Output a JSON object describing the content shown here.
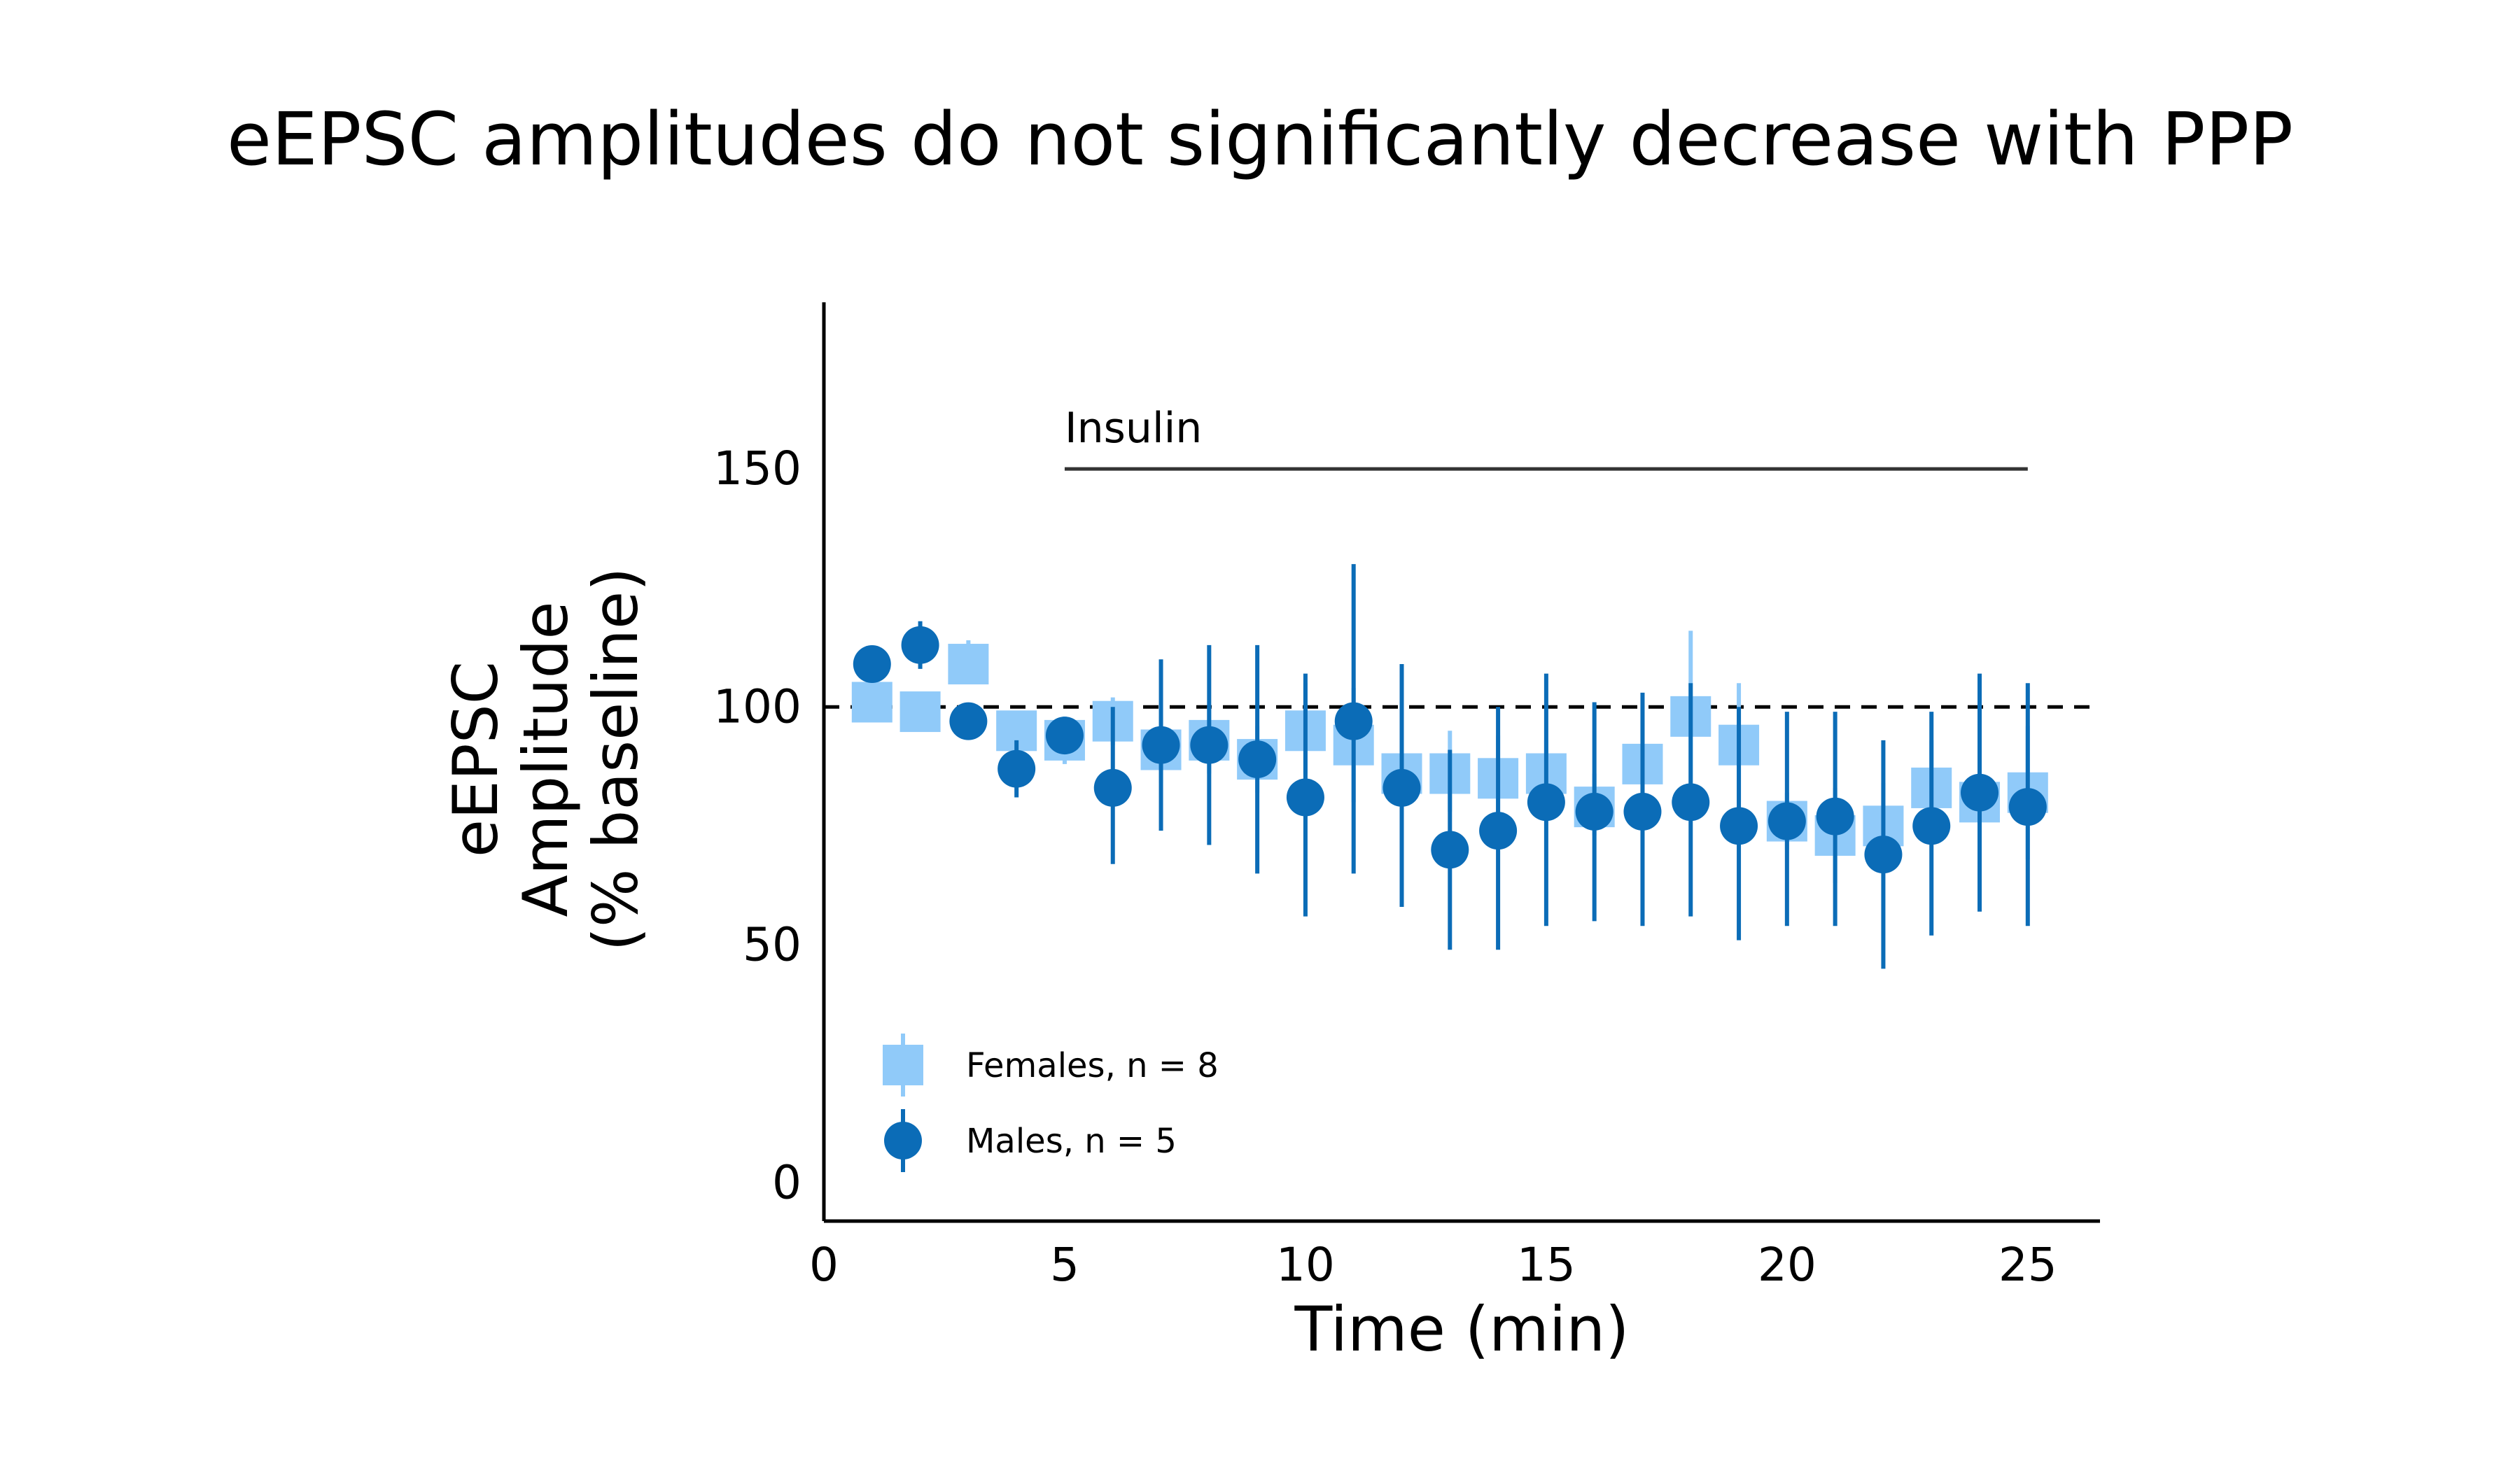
{
  "chart_data": {
    "type": "scatter",
    "title": "eEPSC amplitudes do not significantly decrease with PPP",
    "xlabel": "Time (min)",
    "ylabel": [
      "eEPSC",
      "Amplitude",
      "(% baseline)"
    ],
    "xlim": [
      0,
      26.5
    ],
    "ylim": [
      -8,
      185
    ],
    "xticks": [
      0,
      5,
      10,
      15,
      20,
      25
    ],
    "yticks": [
      0,
      50,
      100,
      150
    ],
    "reference_line": {
      "y": 100,
      "style": "dashed"
    },
    "annotation": {
      "text": "Insulin",
      "x_start": 5,
      "x_end": 25,
      "y": 150
    },
    "legend_position": "bottom-left",
    "grid": false,
    "series": [
      {
        "name": "Females, n = 8",
        "marker": "square",
        "color": "#90CAF9",
        "points": [
          {
            "x": 1,
            "y": 101,
            "lo": 98,
            "hi": 104
          },
          {
            "x": 2,
            "y": 99,
            "lo": 97,
            "hi": 101
          },
          {
            "x": 3,
            "y": 109,
            "lo": 105,
            "hi": 114
          },
          {
            "x": 4,
            "y": 95,
            "lo": 92,
            "hi": 98
          },
          {
            "x": 5,
            "y": 93,
            "lo": 88,
            "hi": 98
          },
          {
            "x": 6,
            "y": 97,
            "lo": 92,
            "hi": 102
          },
          {
            "x": 7,
            "y": 91,
            "lo": 84,
            "hi": 98
          },
          {
            "x": 8,
            "y": 93,
            "lo": 86,
            "hi": 100
          },
          {
            "x": 9,
            "y": 89,
            "lo": 82,
            "hi": 96
          },
          {
            "x": 10,
            "y": 95,
            "lo": 86,
            "hi": 105
          },
          {
            "x": 11,
            "y": 92,
            "lo": 80,
            "hi": 104
          },
          {
            "x": 12,
            "y": 86,
            "lo": 80,
            "hi": 92
          },
          {
            "x": 13,
            "y": 86,
            "lo": 78,
            "hi": 95
          },
          {
            "x": 14,
            "y": 85,
            "lo": 77,
            "hi": 94
          },
          {
            "x": 15,
            "y": 86,
            "lo": 79,
            "hi": 93
          },
          {
            "x": 16,
            "y": 79,
            "lo": 73,
            "hi": 86
          },
          {
            "x": 17,
            "y": 88,
            "lo": 80,
            "hi": 97
          },
          {
            "x": 18,
            "y": 98,
            "lo": 80,
            "hi": 116
          },
          {
            "x": 19,
            "y": 92,
            "lo": 80,
            "hi": 105
          },
          {
            "x": 20,
            "y": 76,
            "lo": 70,
            "hi": 82
          },
          {
            "x": 21,
            "y": 73,
            "lo": 63,
            "hi": 83
          },
          {
            "x": 22,
            "y": 75,
            "lo": 66,
            "hi": 84
          },
          {
            "x": 23,
            "y": 83,
            "lo": 72,
            "hi": 93
          },
          {
            "x": 24,
            "y": 80,
            "lo": 68,
            "hi": 92
          },
          {
            "x": 25,
            "y": 82,
            "lo": 68,
            "hi": 96
          }
        ]
      },
      {
        "name": "Males, n = 5",
        "marker": "circle",
        "color": "#0B6CB7",
        "points": [
          {
            "x": 1,
            "y": 109,
            "lo": 106,
            "hi": 112
          },
          {
            "x": 2,
            "y": 113,
            "lo": 108,
            "hi": 118
          },
          {
            "x": 3,
            "y": 97,
            "lo": 95,
            "hi": 99
          },
          {
            "x": 4,
            "y": 87,
            "lo": 81,
            "hi": 93
          },
          {
            "x": 5,
            "y": 94,
            "lo": 91,
            "hi": 97
          },
          {
            "x": 6,
            "y": 83,
            "lo": 67,
            "hi": 100
          },
          {
            "x": 7,
            "y": 92,
            "lo": 74,
            "hi": 110
          },
          {
            "x": 8,
            "y": 92,
            "lo": 71,
            "hi": 113
          },
          {
            "x": 9,
            "y": 89,
            "lo": 65,
            "hi": 113
          },
          {
            "x": 10,
            "y": 81,
            "lo": 56,
            "hi": 107
          },
          {
            "x": 11,
            "y": 97,
            "lo": 65,
            "hi": 130
          },
          {
            "x": 12,
            "y": 83,
            "lo": 58,
            "hi": 109
          },
          {
            "x": 13,
            "y": 70,
            "lo": 49,
            "hi": 91
          },
          {
            "x": 14,
            "y": 74,
            "lo": 49,
            "hi": 100
          },
          {
            "x": 15,
            "y": 80,
            "lo": 54,
            "hi": 107
          },
          {
            "x": 16,
            "y": 78,
            "lo": 55,
            "hi": 101
          },
          {
            "x": 17,
            "y": 78,
            "lo": 54,
            "hi": 103
          },
          {
            "x": 18,
            "y": 80,
            "lo": 56,
            "hi": 105
          },
          {
            "x": 19,
            "y": 75,
            "lo": 51,
            "hi": 100
          },
          {
            "x": 20,
            "y": 76,
            "lo": 54,
            "hi": 99
          },
          {
            "x": 21,
            "y": 77,
            "lo": 54,
            "hi": 99
          },
          {
            "x": 22,
            "y": 69,
            "lo": 45,
            "hi": 93
          },
          {
            "x": 23,
            "y": 75,
            "lo": 52,
            "hi": 99
          },
          {
            "x": 24,
            "y": 82,
            "lo": 57,
            "hi": 107
          },
          {
            "x": 25,
            "y": 79,
            "lo": 54,
            "hi": 105
          }
        ]
      }
    ]
  }
}
